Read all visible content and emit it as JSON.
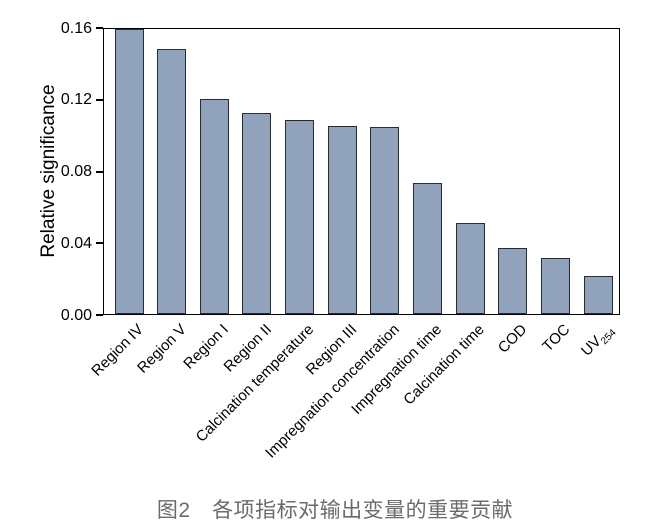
{
  "figure": {
    "caption": "图2　各项指标对输出变量的重要贡献"
  },
  "chart_data": {
    "type": "bar",
    "title": "",
    "xlabel": "",
    "ylabel": "Relative significance",
    "ylim": [
      0,
      0.16
    ],
    "ytick_values": [
      0.0,
      0.04,
      0.08,
      0.12,
      0.16
    ],
    "ytick_labels": [
      "0.00",
      "0.04",
      "0.08",
      "0.12",
      "0.16"
    ],
    "grid": false,
    "legend": "none",
    "categories": [
      {
        "label": "Region IV"
      },
      {
        "label": "Region V"
      },
      {
        "label": "Region I"
      },
      {
        "label": "Region II"
      },
      {
        "label": "Calcination temperature"
      },
      {
        "label": "Region III"
      },
      {
        "label": "Impregnation concentration"
      },
      {
        "label": "Impregnation time"
      },
      {
        "label": "Calcination time"
      },
      {
        "label": "COD"
      },
      {
        "label": "TOC"
      },
      {
        "label": "UV",
        "sub": "254"
      }
    ],
    "values": [
      0.159,
      0.148,
      0.12,
      0.112,
      0.108,
      0.105,
      0.104,
      0.073,
      0.051,
      0.037,
      0.031,
      0.021
    ],
    "colors": {
      "bar_fill": "#91a3bc",
      "bar_edge": "#272b35",
      "axis": "#000000",
      "caption_text": "#6b6b6b"
    }
  }
}
